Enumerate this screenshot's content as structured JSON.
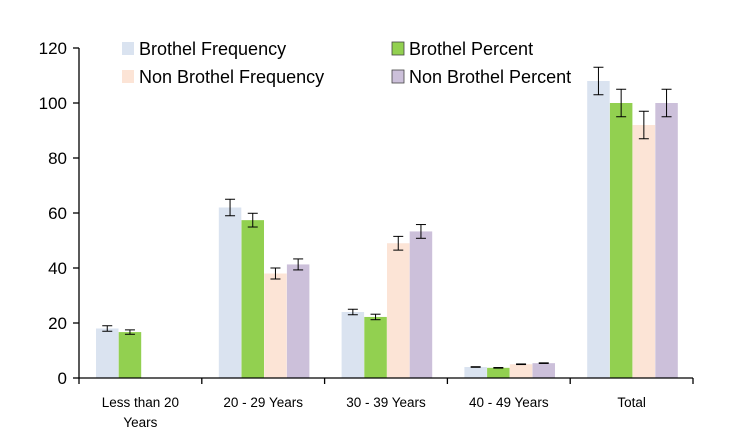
{
  "chart_data": {
    "type": "bar",
    "categories": [
      "Less than 20 Years",
      "20 - 29 Years",
      "30 - 39 Years",
      "40 - 49 Years",
      "Total"
    ],
    "category_lines": [
      [
        "Less than 20",
        "Years"
      ],
      [
        "20 - 29 Years"
      ],
      [
        "30 - 39 Years"
      ],
      [
        "40 - 49 Years"
      ],
      [
        "Total"
      ]
    ],
    "series": [
      {
        "name": "Brothel Frequency",
        "color": "#dae3f0",
        "values": [
          18,
          62,
          24,
          4,
          108
        ],
        "errors": [
          1,
          3,
          1,
          0,
          5
        ]
      },
      {
        "name": "Brothel Percent",
        "color": "#92d050",
        "values": [
          16.7,
          57.4,
          22.2,
          3.7,
          100
        ],
        "errors": [
          0.8,
          2.5,
          1,
          0,
          5
        ]
      },
      {
        "name": "Non Brothel Frequency",
        "color": "#fce4d6",
        "values": [
          null,
          38,
          49,
          5,
          92
        ],
        "errors": [
          null,
          2,
          2.5,
          0,
          5
        ]
      },
      {
        "name": "Non Brothel Percent",
        "color": "#ccc0da",
        "values": [
          null,
          41.3,
          53.3,
          5.4,
          100
        ],
        "errors": [
          null,
          2,
          2.5,
          0,
          5
        ]
      }
    ],
    "ylim": [
      0,
      120
    ],
    "yticks": [
      0,
      20,
      40,
      60,
      80,
      100,
      120
    ],
    "title": "",
    "xlabel": "",
    "ylabel": "",
    "grid": false,
    "legend_position": "top"
  }
}
